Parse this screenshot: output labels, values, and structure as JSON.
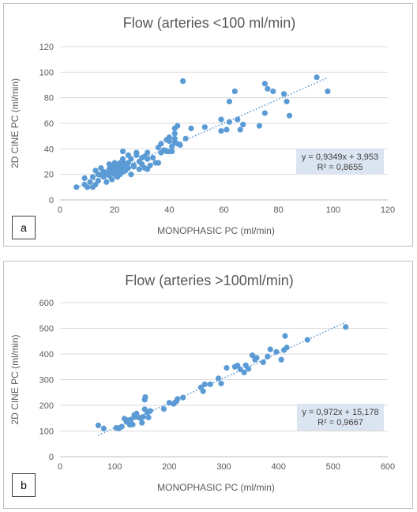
{
  "chart_data": [
    {
      "type": "scatter",
      "panel_label": "a",
      "title": "Flow (arteries <100 ml/min)",
      "xlabel": "MONOPHASIC PC (ml/min)",
      "ylabel": "2D CINE PC (ml/min)",
      "xlim": [
        0,
        120
      ],
      "ylim": [
        0,
        120
      ],
      "xticks": [
        "0",
        "20",
        "40",
        "60",
        "80",
        "100",
        "120"
      ],
      "yticks": [
        "0",
        "20",
        "40",
        "60",
        "80",
        "100",
        "120"
      ],
      "grid": true,
      "trendline": {
        "slope": 0.9349,
        "intercept": 3.953,
        "x_range": [
          6,
          98
        ],
        "style": "dotted"
      },
      "equation": "y = 0,9349x + 3,953",
      "r2": "R² = 0,8655",
      "colors": {
        "points": "#5b9bd5",
        "trendline": "#5b9bd5",
        "label_box": "#dbe5f1"
      },
      "points": [
        [
          6,
          10
        ],
        [
          9,
          12
        ],
        [
          9,
          17
        ],
        [
          10,
          10
        ],
        [
          11,
          14
        ],
        [
          12,
          10
        ],
        [
          12,
          18
        ],
        [
          13,
          12
        ],
        [
          13,
          23
        ],
        [
          14,
          20
        ],
        [
          14,
          15
        ],
        [
          15,
          25
        ],
        [
          15,
          20
        ],
        [
          16,
          18
        ],
        [
          16,
          22
        ],
        [
          17,
          14
        ],
        [
          17,
          21
        ],
        [
          18,
          24
        ],
        [
          18,
          28
        ],
        [
          18,
          19
        ],
        [
          19,
          16
        ],
        [
          19,
          22
        ],
        [
          19,
          26
        ],
        [
          20,
          29
        ],
        [
          20,
          24
        ],
        [
          20,
          20
        ],
        [
          21,
          18
        ],
        [
          21,
          23
        ],
        [
          21,
          27
        ],
        [
          22,
          25
        ],
        [
          22,
          20
        ],
        [
          22,
          29
        ],
        [
          23,
          30
        ],
        [
          23,
          32
        ],
        [
          23,
          26
        ],
        [
          23,
          22
        ],
        [
          23,
          38
        ],
        [
          24,
          28
        ],
        [
          24,
          23
        ],
        [
          25,
          25
        ],
        [
          25,
          35
        ],
        [
          25,
          29
        ],
        [
          26,
          20
        ],
        [
          26,
          32
        ],
        [
          27,
          27
        ],
        [
          27,
          26
        ],
        [
          28,
          37
        ],
        [
          28,
          35
        ],
        [
          29,
          30
        ],
        [
          29,
          24
        ],
        [
          30,
          33
        ],
        [
          30,
          28
        ],
        [
          31,
          34
        ],
        [
          31,
          25
        ],
        [
          32,
          32
        ],
        [
          32,
          24
        ],
        [
          32,
          37
        ],
        [
          33,
          27
        ],
        [
          34,
          33
        ],
        [
          35,
          29
        ],
        [
          36,
          29
        ],
        [
          36,
          41
        ],
        [
          37,
          44
        ],
        [
          37,
          37
        ],
        [
          38,
          39
        ],
        [
          39,
          38
        ],
        [
          39,
          47
        ],
        [
          40,
          46
        ],
        [
          40,
          38
        ],
        [
          40,
          49
        ],
        [
          41,
          42
        ],
        [
          41,
          38
        ],
        [
          42,
          45
        ],
        [
          42,
          52
        ],
        [
          42,
          56
        ],
        [
          42,
          48
        ],
        [
          43,
          58
        ],
        [
          43,
          44
        ],
        [
          44,
          43
        ],
        [
          45,
          93
        ],
        [
          46,
          48
        ],
        [
          48,
          56
        ],
        [
          53,
          57
        ],
        [
          59,
          63
        ],
        [
          59,
          54
        ],
        [
          61,
          55
        ],
        [
          62,
          61
        ],
        [
          62,
          77
        ],
        [
          64,
          85
        ],
        [
          65,
          63
        ],
        [
          66,
          55
        ],
        [
          67,
          59
        ],
        [
          73,
          58
        ],
        [
          75,
          91
        ],
        [
          75,
          68
        ],
        [
          76,
          87
        ],
        [
          78,
          85
        ],
        [
          82,
          83
        ],
        [
          83,
          77
        ],
        [
          84,
          66
        ],
        [
          94,
          96
        ],
        [
          98,
          85
        ]
      ]
    },
    {
      "type": "scatter",
      "panel_label": "b",
      "title": "Flow (arteries >100ml/min)",
      "xlabel": "MONOPHASIC PC (ml/min)",
      "ylabel": "2D CINE PC (ml/min)",
      "xlim": [
        0,
        600
      ],
      "ylim": [
        0,
        600
      ],
      "xticks": [
        "0",
        "100",
        "200",
        "300",
        "400",
        "500",
        "600"
      ],
      "yticks": [
        "0",
        "100",
        "200",
        "300",
        "400",
        "500",
        "600"
      ],
      "grid": true,
      "trendline": {
        "slope": 0.972,
        "intercept": 15.178,
        "x_range": [
          70,
          523
        ],
        "style": "dotted"
      },
      "equation": "y = 0,972x + 15,178",
      "r2": "R² = 0,9667",
      "colors": {
        "points": "#5b9bd5",
        "trendline": "#5b9bd5",
        "label_box": "#dbe5f1"
      },
      "points": [
        [
          70,
          122
        ],
        [
          80,
          110
        ],
        [
          103,
          112
        ],
        [
          108,
          110
        ],
        [
          113,
          117
        ],
        [
          118,
          148
        ],
        [
          122,
          135
        ],
        [
          125,
          142
        ],
        [
          128,
          124
        ],
        [
          130,
          145
        ],
        [
          133,
          125
        ],
        [
          136,
          162
        ],
        [
          138,
          155
        ],
        [
          140,
          168
        ],
        [
          145,
          152
        ],
        [
          148,
          150
        ],
        [
          150,
          132
        ],
        [
          152,
          155
        ],
        [
          155,
          185
        ],
        [
          155,
          222
        ],
        [
          156,
          232
        ],
        [
          160,
          172
        ],
        [
          162,
          153
        ],
        [
          165,
          178
        ],
        [
          190,
          186
        ],
        [
          200,
          210
        ],
        [
          208,
          206
        ],
        [
          213,
          215
        ],
        [
          215,
          225
        ],
        [
          225,
          230
        ],
        [
          258,
          270
        ],
        [
          262,
          255
        ],
        [
          265,
          282
        ],
        [
          275,
          282
        ],
        [
          290,
          305
        ],
        [
          295,
          285
        ],
        [
          305,
          346
        ],
        [
          320,
          350
        ],
        [
          325,
          355
        ],
        [
          330,
          340
        ],
        [
          337,
          328
        ],
        [
          340,
          356
        ],
        [
          345,
          342
        ],
        [
          352,
          395
        ],
        [
          357,
          378
        ],
        [
          360,
          385
        ],
        [
          372,
          368
        ],
        [
          380,
          390
        ],
        [
          385,
          418
        ],
        [
          396,
          408
        ],
        [
          405,
          378
        ],
        [
          410,
          415
        ],
        [
          412,
          470
        ],
        [
          415,
          425
        ],
        [
          453,
          455
        ],
        [
          523,
          505
        ]
      ]
    }
  ]
}
